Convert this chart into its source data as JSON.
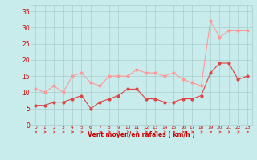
{
  "x": [
    0,
    1,
    2,
    3,
    4,
    5,
    6,
    7,
    8,
    9,
    10,
    11,
    12,
    13,
    14,
    15,
    16,
    17,
    18,
    19,
    20,
    21,
    22,
    23
  ],
  "wind_avg": [
    6,
    6,
    7,
    7,
    8,
    9,
    5,
    7,
    8,
    9,
    11,
    11,
    8,
    8,
    7,
    7,
    8,
    8,
    9,
    16,
    19,
    19,
    14,
    15
  ],
  "wind_gust": [
    11,
    10,
    12,
    10,
    15,
    16,
    13,
    12,
    15,
    15,
    15,
    17,
    16,
    16,
    15,
    16,
    14,
    13,
    12,
    32,
    27,
    29,
    29,
    29
  ],
  "avg_color": "#dd4444",
  "gust_color": "#ff9999",
  "bg_color": "#c8ecec",
  "grid_color": "#aacccc",
  "xlabel": "Vent moyen/en rafales ( km/h )",
  "xlabel_color": "#cc0000",
  "tick_color": "#cc0000",
  "yticks": [
    0,
    5,
    10,
    15,
    20,
    25,
    30,
    35
  ],
  "ylim": [
    0,
    37
  ],
  "xlim": [
    -0.5,
    23.5
  ]
}
